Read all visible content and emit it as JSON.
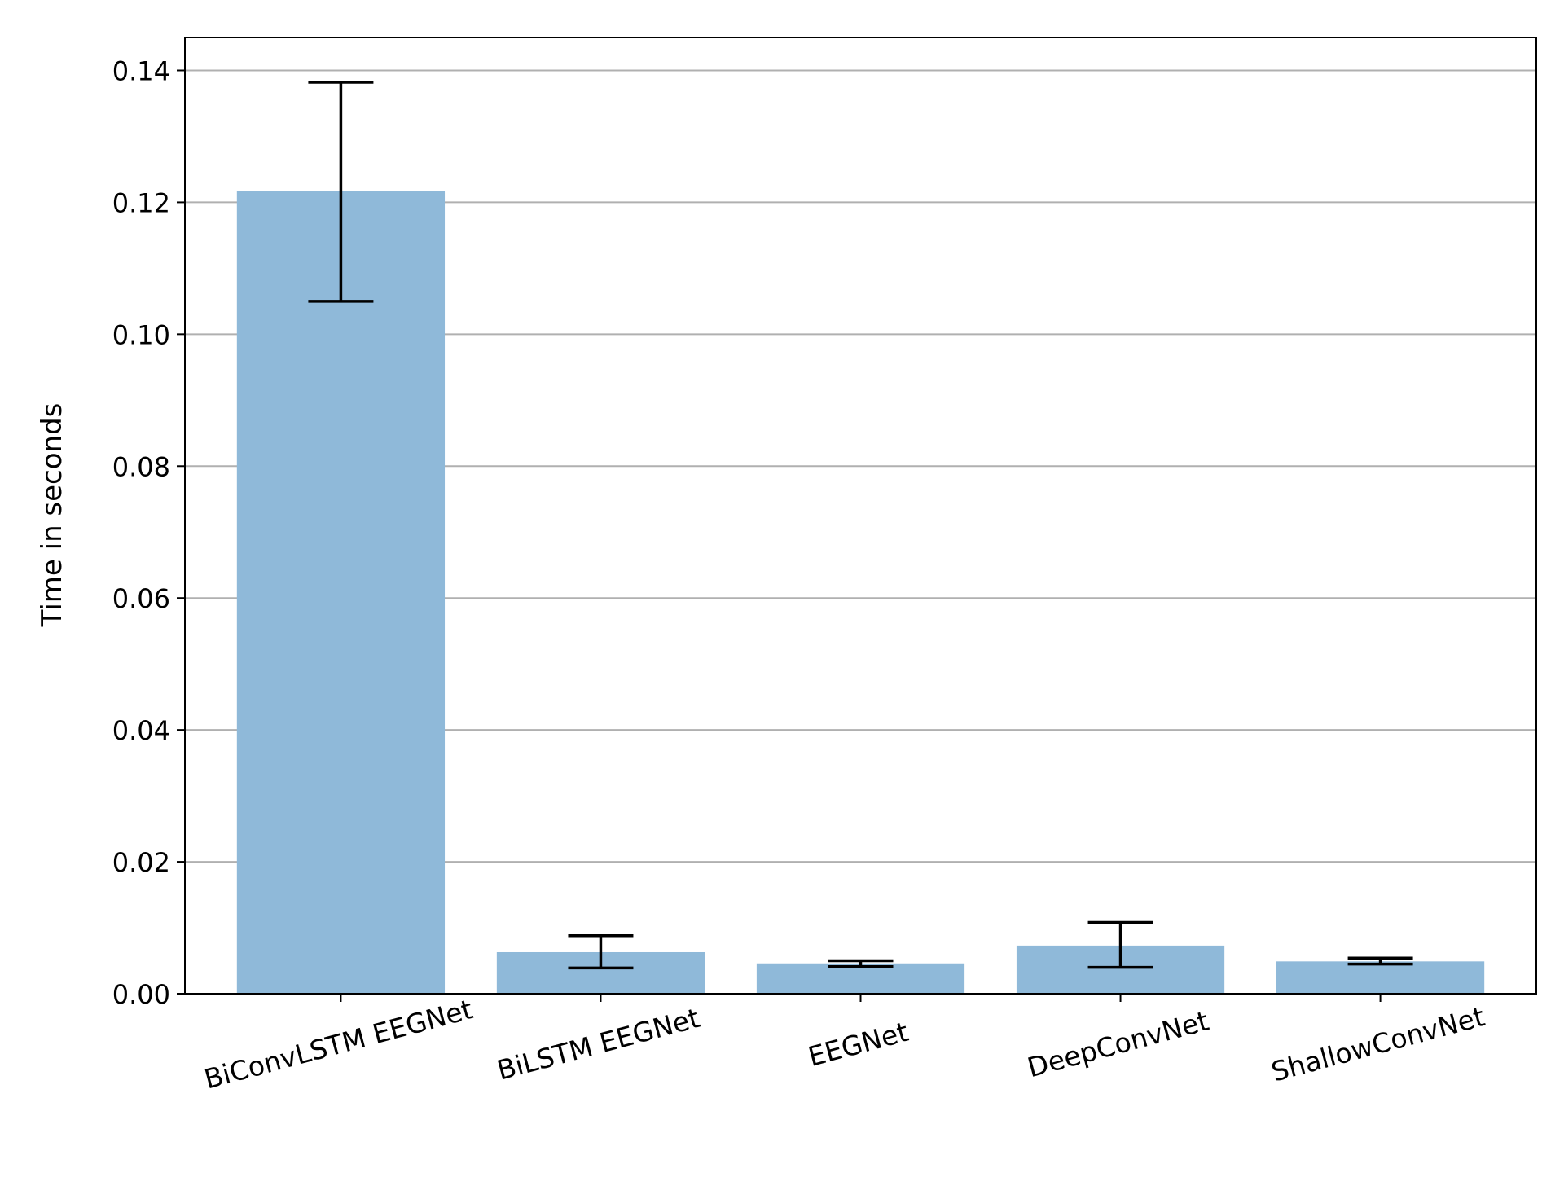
{
  "chart_data": {
    "type": "bar",
    "categories": [
      "BiConvLSTM EEGNet",
      "BiLSTM EEGNet",
      "EEGNet",
      "DeepConvNet",
      "ShallowConvNet"
    ],
    "values": [
      0.1217,
      0.0063,
      0.0046,
      0.0073,
      0.0049
    ],
    "error_low": [
      0.105,
      0.0039,
      0.0041,
      0.004,
      0.0045
    ],
    "error_high": [
      0.1382,
      0.0088,
      0.005,
      0.0108,
      0.0054
    ],
    "xlabel": "",
    "ylabel": "Time in seconds",
    "ylim": [
      0,
      0.145
    ],
    "yticks": [
      0.0,
      0.02,
      0.04,
      0.06,
      0.08,
      0.1,
      0.12,
      0.14
    ],
    "ytick_labels": [
      "0.00",
      "0.02",
      "0.04",
      "0.06",
      "0.08",
      "0.10",
      "0.12",
      "0.14"
    ],
    "xtick_rotation_deg": 15,
    "grid": "horizontal",
    "bar_color": "#8fb9d9",
    "error_color": "#000000",
    "grid_color": "#b0b0b0"
  }
}
